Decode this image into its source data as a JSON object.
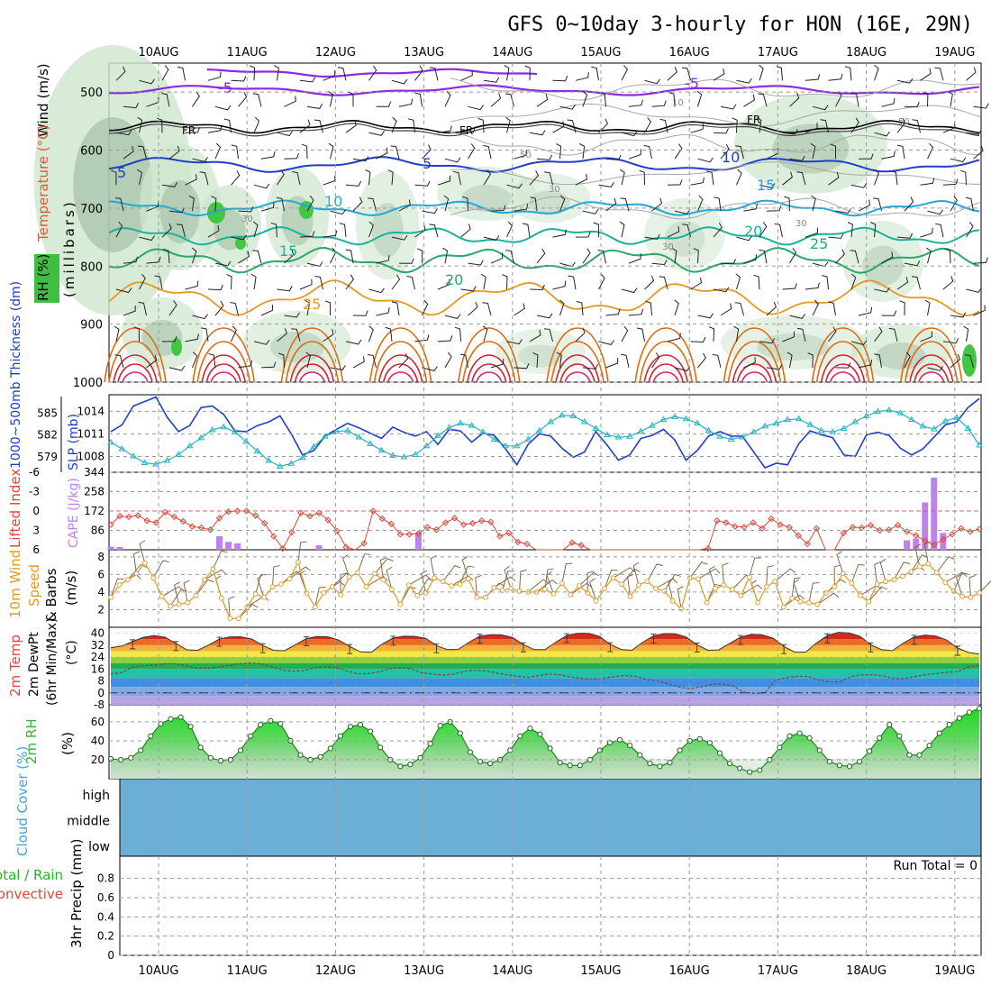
{
  "chart_title": "GFS 0~10day 3-hourly for HON (16E, 29N)",
  "colors": {
    "purple": "#8a2be2",
    "blue": "#1f3fc8",
    "cyan": "#22a7d8",
    "teal": "#17b39b",
    "green": "#2aa86a",
    "orange": "#e39a20",
    "darkorange": "#e06a10",
    "red": "#d42030",
    "cloud": "#6baed6",
    "slp": "#1f3fc8",
    "thickness": "#22b3c2",
    "lifted": "#e0473a",
    "cape": "#c080f0",
    "wind": "#e0a030",
    "rh": "#2fb82f"
  },
  "chart_data": [
    {
      "panel": "upper_air",
      "type": "contour",
      "ylabel_parts": [
        "Wind (m/s)",
        "Temperature (°C)",
        "RH (%)",
        "(millibars)"
      ],
      "x_ticks": [
        "10AUG",
        "11AUG",
        "12AUG",
        "13AUG",
        "14AUG",
        "15AUG",
        "16AUG",
        "17AUG",
        "18AUG",
        "19AUG"
      ],
      "y_ticks": [
        500,
        600,
        700,
        800,
        900,
        1000
      ],
      "ylim": [
        1000,
        450
      ],
      "freezing_label": "FR",
      "isotherm_labels": [
        "-5",
        "-5",
        "5",
        "5",
        "10",
        "10",
        "15",
        "15",
        "20",
        "20",
        "25",
        "25"
      ],
      "rh_labels": [
        "10",
        "30",
        "30",
        "30",
        "50",
        "50",
        "30"
      ]
    },
    {
      "panel": "slp_thickness",
      "type": "line",
      "ylabel_left": "1000~500mb Thickness (dm)",
      "ylabel_right": "SLP (mb)",
      "left_ticks": [
        585,
        582,
        579
      ],
      "right_ticks": [
        1014,
        1011,
        1008
      ],
      "series": [
        {
          "name": "SLP (mb)",
          "values": [
            1011.3,
            1012.2,
            1014.7,
            1015.3,
            1015.9,
            1013.2,
            1011.3,
            1012.1,
            1014.5,
            1014.7,
            1013.6,
            1011.4,
            1011.3,
            1012.1,
            1012.6,
            1013.4,
            1011.0,
            1008.2,
            1008.8,
            1010.7,
            1011.6,
            1012.4,
            1011.8,
            1011.1,
            1010.4,
            1011.9,
            1011.2,
            1010.7,
            1011.3,
            1009.6,
            1011.6,
            1011.4,
            1009.9,
            1011.1,
            1010.8,
            1009.0,
            1006.9,
            1009.6,
            1011.0,
            1010.7,
            1009.1,
            1007.9,
            1008.6,
            1011.3,
            1009.5,
            1007.5,
            1008.2,
            1010.4,
            1010.8,
            1011.6,
            1010.2,
            1007.5,
            1008.8,
            1010.7,
            1011.3,
            1010.7,
            1010.7,
            1008.6,
            1006.5,
            1007.1,
            1006.9,
            1009.7,
            1011.4,
            1010.9,
            1010.5,
            1008.2,
            1008.0,
            1010.9,
            1011.2,
            1010.8,
            1009.1,
            1008.2,
            1009.0,
            1010.6,
            1012.2,
            1012.6,
            1014.5,
            1015.7
          ]
        },
        {
          "name": "Thickness (dm)",
          "values": [
            581.0,
            580.1,
            579.1,
            578.2,
            578.0,
            578.5,
            579.3,
            580.5,
            581.6,
            582.7,
            583.1,
            582.4,
            581.1,
            579.8,
            578.5,
            577.7,
            578.1,
            578.9,
            580.4,
            581.8,
            582.5,
            582.6,
            581.7,
            580.8,
            579.9,
            579.2,
            579.0,
            579.3,
            580.5,
            581.9,
            583.0,
            583.6,
            583.3,
            582.4,
            581.4,
            580.5,
            580.5,
            581.4,
            582.6,
            583.8,
            584.7,
            584.6,
            583.8,
            582.9,
            582.0,
            581.7,
            581.8,
            582.5,
            583.3,
            584.1,
            584.5,
            584.2,
            583.6,
            582.6,
            581.8,
            581.4,
            581.7,
            582.4,
            583.2,
            583.6,
            584.1,
            584.2,
            583.4,
            582.6,
            582.4,
            582.9,
            583.8,
            584.6,
            585.2,
            585.4,
            585.0,
            584.1,
            583.2,
            582.8,
            583.9,
            584.4,
            582.9,
            580.6
          ]
        }
      ]
    },
    {
      "panel": "lifted_cape",
      "type": "line_bar",
      "ylabel_left": "Lifted Index",
      "ylabel_right": "CAPE (J/kg)",
      "left_ticks": [
        "-6",
        "-3",
        "0",
        "3",
        "6"
      ],
      "right_ticks": [
        344,
        258,
        172,
        86
      ],
      "ylim_lifted": [
        6,
        -6
      ],
      "ylim_cape": [
        0,
        344
      ],
      "series": [
        {
          "name": "Lifted Index",
          "values": [
            2.1,
            0.8,
            0.9,
            0.7,
            1.5,
            1.8,
            0.2,
            0.9,
            1.6,
            2.4,
            2.6,
            2.9,
            1.1,
            0.1,
            0.0,
            0.0,
            0.7,
            1.9,
            3.9,
            5.8,
            3.3,
            0.3,
            0.8,
            0.3,
            1.4,
            3.1,
            5.6,
            7.0,
            5.0,
            0.0,
            1.2,
            2.0,
            3.6,
            3.6,
            3.5,
            2.5,
            2.9,
            1.8,
            1.1,
            2.1,
            1.9,
            1.5,
            1.7,
            3.9,
            3.4,
            4.8,
            5.1,
            6.4,
            6.2,
            6.8,
            6.0,
            4.9,
            5.3,
            6.9,
            7.2,
            7.1,
            6.7,
            6.6,
            6.9,
            7.0,
            7.6,
            7.6,
            7.4,
            7.6,
            7.3,
            7.1,
            5.8,
            1.5,
            1.8,
            2.4,
            2.5,
            1.8,
            2.7,
            1.2,
            2.1,
            2.5,
            3.8,
            5.1,
            2.7,
            6.7,
            6.6,
            3.4,
            2.5,
            2.6,
            2.2,
            3.0,
            2.9,
            2.2,
            3.2,
            3.8,
            4.6,
            5.2,
            4.4,
            3.6,
            2.7,
            3.2,
            2.8
          ]
        },
        {
          "name": "CAPE (J/kg)",
          "values": [
            14,
            12,
            0,
            0,
            0,
            0,
            0,
            0,
            0,
            0,
            0,
            0,
            60,
            35,
            28,
            0,
            0,
            0,
            0,
            0,
            0,
            0,
            0,
            20,
            0,
            0,
            0,
            0,
            0,
            0,
            0,
            0,
            0,
            0,
            78,
            0,
            0,
            0,
            0,
            0,
            0,
            0,
            0,
            0,
            0,
            0,
            0,
            0,
            0,
            0,
            0,
            0,
            0,
            0,
            0,
            0,
            0,
            0,
            0,
            0,
            0,
            0,
            0,
            0,
            0,
            0,
            0,
            0,
            0,
            0,
            0,
            0,
            0,
            0,
            0,
            0,
            0,
            0,
            0,
            0,
            0,
            0,
            0,
            0,
            0,
            0,
            0,
            0,
            42,
            50,
            210,
            320,
            75,
            0,
            0,
            0,
            0
          ]
        }
      ]
    },
    {
      "panel": "wind10m",
      "type": "line",
      "ylabel": "10m Wind Speed & Barbs (m/s)",
      "ylabel_parts": [
        "10m Wind",
        "Speed",
        "& Barbs",
        "(m/s)"
      ],
      "y_ticks": [
        8,
        6,
        4,
        2
      ],
      "ylim": [
        0,
        8.8
      ],
      "series": [
        {
          "name": "Wind Speed (m/s)",
          "values": [
            3.4,
            4.8,
            5.4,
            6.1,
            7.3,
            5.6,
            3.5,
            2.4,
            2.6,
            2.8,
            3.6,
            5.4,
            6.6,
            3.3,
            1.0,
            1.0,
            2.3,
            3.8,
            3.4,
            4.6,
            4.9,
            5.5,
            7.4,
            3.9,
            2.3,
            3.9,
            4.6,
            3.7,
            5.7,
            6.2,
            4.6,
            6.1,
            5.4,
            4.3,
            2.6,
            4.8,
            3.6,
            3.9,
            5.6,
            5.2,
            4.7,
            4.9,
            5.5,
            3.4,
            3.4,
            4.5,
            4.2,
            4.4,
            4.1,
            4.0,
            4.0,
            4.3,
            3.8,
            5.0,
            3.7,
            4.7,
            3.9,
            3.0,
            4.4,
            5.6,
            4.9,
            3.5,
            4.8,
            5.2,
            4.4,
            4.1,
            3.0,
            2.1,
            5.6,
            5.5,
            2.8,
            4.4,
            4.8,
            4.3,
            3.6,
            5.7,
            2.8,
            4.6,
            5.2,
            2.3,
            3.3,
            2.9,
            2.8,
            2.6,
            3.9,
            4.6,
            6.1,
            5.0,
            3.6,
            2.9,
            4.9,
            5.2,
            5.4,
            5.8,
            6.3,
            6.9,
            7.2,
            6.2,
            5.1,
            4.1,
            3.5,
            3.4,
            3.9
          ]
        }
      ]
    },
    {
      "panel": "temp2m",
      "type": "area",
      "ylabel": "2m Temp 2m DewPt (6hr Min/Max) (°C)",
      "ylabel_parts": [
        "2m Temp",
        "2m DewPt",
        "(6hr Min/Max)",
        "(°C)"
      ],
      "y_ticks": [
        "40",
        "32",
        "24",
        "16",
        "8",
        "0",
        "-8"
      ],
      "ylim": [
        -8,
        44
      ],
      "series": [
        {
          "name": "2m Temp (°C)",
          "values": [
            30.3,
            31.4,
            34.4,
            37.3,
            38.4,
            37.3,
            33.2,
            28.9,
            28.5,
            32.0,
            36.1,
            37.6,
            37.6,
            36.1,
            31.8,
            28.5,
            28.3,
            32.3,
            36.4,
            37.8,
            37.6,
            35.4,
            31.2,
            27.5,
            27.3,
            32.8,
            36.8,
            38.0,
            37.9,
            36.6,
            31.7,
            29.0,
            29.2,
            34.0,
            38.1,
            39.0,
            38.9,
            37.1,
            32.4,
            29.0,
            29.0,
            34.0,
            38.5,
            40.0,
            40.0,
            37.9,
            32.5,
            29.1,
            28.6,
            34.0,
            38.2,
            39.8,
            39.6,
            37.5,
            32.2,
            28.6,
            28.8,
            33.2,
            37.3,
            39.3,
            38.9,
            36.7,
            31.2,
            27.3,
            27.3,
            33.5,
            38.4,
            40.6,
            40.2,
            38.0,
            32.3,
            29.0,
            28.3,
            33.4,
            37.4,
            38.8,
            38.1,
            35.4,
            30.1,
            27.1,
            26.0
          ]
        },
        {
          "name": "2m DewPt (°C)",
          "values": [
            12.8,
            13.7,
            17.1,
            18.1,
            18.6,
            19.5,
            19.5,
            18.1,
            16.6,
            16.4,
            17.2,
            18.3,
            19.5,
            20.0,
            19.6,
            17.6,
            15.3,
            14.5,
            15.0,
            16.8,
            17.6,
            16.9,
            14.8,
            12.8,
            12.9,
            14.1,
            16.2,
            17.0,
            16.1,
            13.5,
            12.7,
            11.9,
            12.6,
            14.4,
            15.2,
            14.7,
            13.2,
            12.1,
            11.0,
            10.4,
            11.7,
            12.7,
            12.0,
            10.5,
            9.7,
            9.3,
            9.8,
            11.0,
            11.6,
            11.0,
            9.0,
            8.1,
            6.0,
            4.0,
            2.8,
            3.9,
            5.7,
            5.9,
            4.9,
            0.5,
            -0.3,
            0.1,
            8.6,
            10.2,
            11.1,
            11.0,
            8.5,
            7.4,
            7.3,
            10.9,
            12.1,
            12.2,
            11.5,
            9.6,
            9.6,
            11.0,
            12.2,
            13.0,
            13.8,
            14.3,
            17.4,
            18.6
          ]
        }
      ]
    },
    {
      "panel": "rh2m",
      "type": "area",
      "ylabel": "2m RH (%)",
      "y_ticks": [
        60,
        40,
        20
      ],
      "ylim": [
        0,
        78
      ],
      "series": [
        {
          "name": "2m RH (%)",
          "values": [
            21,
            20,
            22,
            30,
            45,
            58,
            63,
            65,
            55,
            33,
            22,
            19,
            20,
            30,
            45,
            57,
            61,
            58,
            40,
            25,
            20,
            23,
            32,
            45,
            55,
            57,
            50,
            33,
            20,
            13,
            15,
            22,
            37,
            56,
            60,
            48,
            28,
            18,
            16,
            20,
            30,
            45,
            53,
            47,
            32,
            17,
            14,
            14,
            20,
            30,
            38,
            41,
            35,
            25,
            16,
            13,
            17,
            30,
            40,
            42,
            38,
            27,
            16,
            11,
            7,
            9,
            20,
            33,
            45,
            48,
            43,
            30,
            18,
            14,
            13,
            18,
            29,
            43,
            57,
            45,
            25,
            25,
            35,
            48,
            57,
            64,
            70,
            74
          ]
        }
      ]
    },
    {
      "panel": "cloud",
      "type": "heatmap",
      "ylabel": "Cloud Cover (%)",
      "y_categories": [
        "high",
        "middle",
        "low"
      ],
      "value": 0
    },
    {
      "panel": "precip",
      "type": "bar",
      "ylabel_parts": [
        "Total / Rain",
        "Convective",
        "3hr Precip (mm)"
      ],
      "y_ticks": [
        "0.8",
        "0.6",
        "0.4",
        "0.2",
        "0"
      ],
      "ylim": [
        0,
        1.0
      ],
      "run_total": "Run Total = 0",
      "values": []
    }
  ]
}
